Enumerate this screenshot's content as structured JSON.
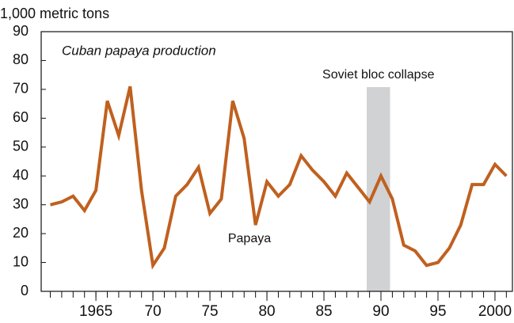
{
  "chart_data": {
    "type": "line",
    "title": "Cuban papaya production",
    "y_label": "1,000 metric tons",
    "x": [
      1961,
      1962,
      1963,
      1964,
      1965,
      1966,
      1967,
      1968,
      1969,
      1970,
      1971,
      1972,
      1973,
      1974,
      1975,
      1976,
      1977,
      1978,
      1979,
      1980,
      1981,
      1982,
      1983,
      1984,
      1985,
      1986,
      1987,
      1988,
      1989,
      1990,
      1991,
      1992,
      1993,
      1994,
      1995,
      1996,
      1997,
      1998,
      1999,
      2000,
      2001
    ],
    "series": [
      {
        "name": "Papaya",
        "color": "#c0601f",
        "values": [
          30,
          31,
          33,
          28,
          35,
          66,
          54,
          71,
          35,
          9,
          15,
          33,
          37,
          43,
          27,
          32,
          66,
          53,
          23,
          38,
          33,
          37,
          47,
          42,
          38,
          33,
          41,
          36,
          31,
          40,
          32,
          16,
          14,
          9,
          10,
          15,
          23,
          37,
          37,
          44,
          40
        ]
      }
    ],
    "xlim": [
      1960.2,
      2001.6
    ],
    "ylim": [
      0,
      90
    ],
    "yticks": [
      0,
      10,
      20,
      30,
      40,
      50,
      60,
      70,
      80,
      90
    ],
    "xticks": [
      {
        "value": 1965,
        "label": "1965"
      },
      {
        "value": 1970,
        "label": "70"
      },
      {
        "value": 1975,
        "label": "75"
      },
      {
        "value": 1980,
        "label": "80"
      },
      {
        "value": 1985,
        "label": "85"
      },
      {
        "value": 1990,
        "label": "90"
      },
      {
        "value": 1995,
        "label": "95"
      },
      {
        "value": 2000,
        "label": "2000"
      }
    ],
    "xminor_ticks": [
      1961,
      1962,
      1963,
      1964,
      1965,
      1966,
      1967,
      1968,
      1969,
      1970,
      1971,
      1972,
      1973,
      1974,
      1975,
      1976,
      1977,
      1978,
      1979,
      1980,
      1981,
      1982,
      1983,
      1984,
      1985,
      1986,
      1987,
      1988,
      1989,
      1990,
      1991,
      1992,
      1993,
      1994,
      1995,
      1996,
      1997,
      1998,
      1999,
      2000,
      2001
    ],
    "shade": {
      "range": [
        1988.75,
        1990.8
      ],
      "label": "Soviet bloc collapse",
      "color": "#d1d2d4"
    }
  }
}
